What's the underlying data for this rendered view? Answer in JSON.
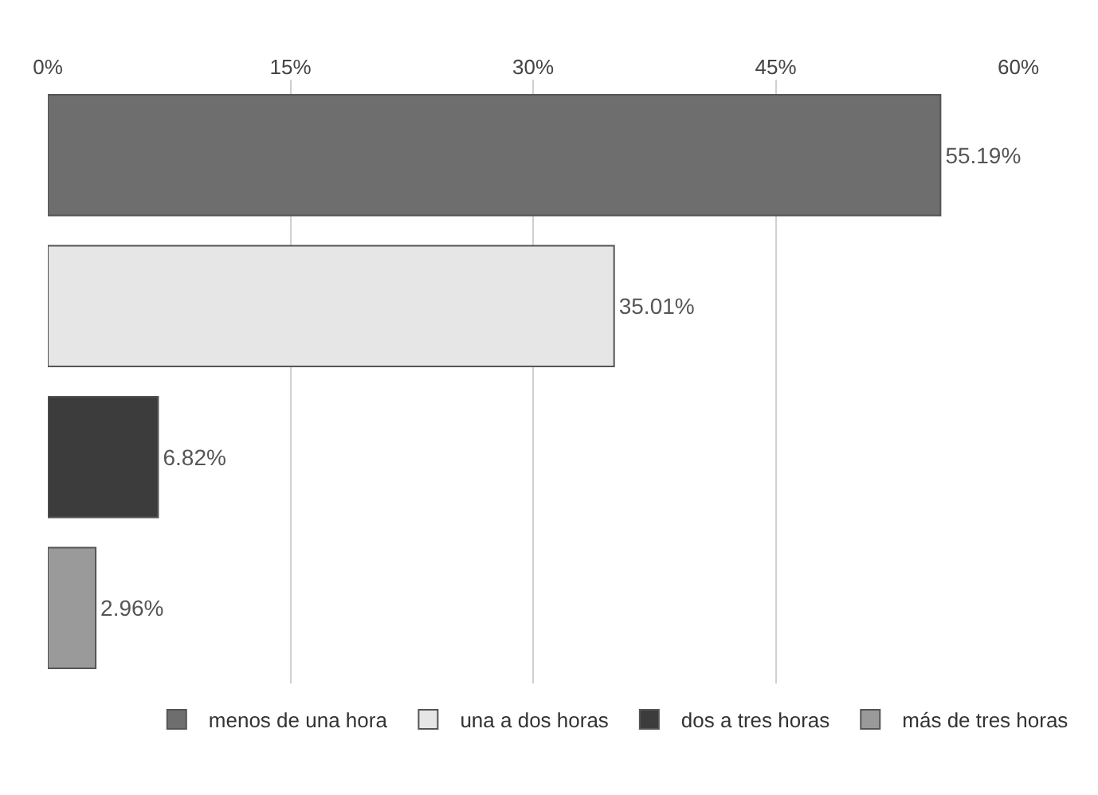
{
  "chart_data": {
    "type": "bar",
    "orientation": "horizontal",
    "categories": [
      null,
      null,
      null,
      null
    ],
    "series": [
      {
        "name": "menos de una hora",
        "color": "#6e6e6e",
        "values": [
          55.19,
          null,
          null,
          null
        ],
        "value_labels": [
          "55.19%",
          null,
          null,
          null
        ]
      },
      {
        "name": "una a dos horas",
        "color": "#e6e6e6",
        "values": [
          null,
          35.01,
          null,
          null
        ],
        "value_labels": [
          null,
          "35.01%",
          null,
          null
        ]
      },
      {
        "name": "dos a tres horas",
        "color": "#3c3c3c",
        "values": [
          null,
          null,
          6.82,
          null
        ],
        "value_labels": [
          null,
          null,
          "6.82%",
          null
        ]
      },
      {
        "name": "más de tres horas",
        "color": "#9a9a9a",
        "values": [
          null,
          null,
          null,
          2.96
        ],
        "value_labels": [
          null,
          null,
          null,
          "2.96%"
        ]
      }
    ],
    "xlim": [
      0,
      60
    ],
    "xticks": [
      {
        "value": 0,
        "label": "0%"
      },
      {
        "value": 15,
        "label": "15%"
      },
      {
        "value": 30,
        "label": "30%"
      },
      {
        "value": 45,
        "label": "45%"
      },
      {
        "value": 60,
        "label": "60%"
      }
    ],
    "grid": "x",
    "legend": "bottom"
  }
}
